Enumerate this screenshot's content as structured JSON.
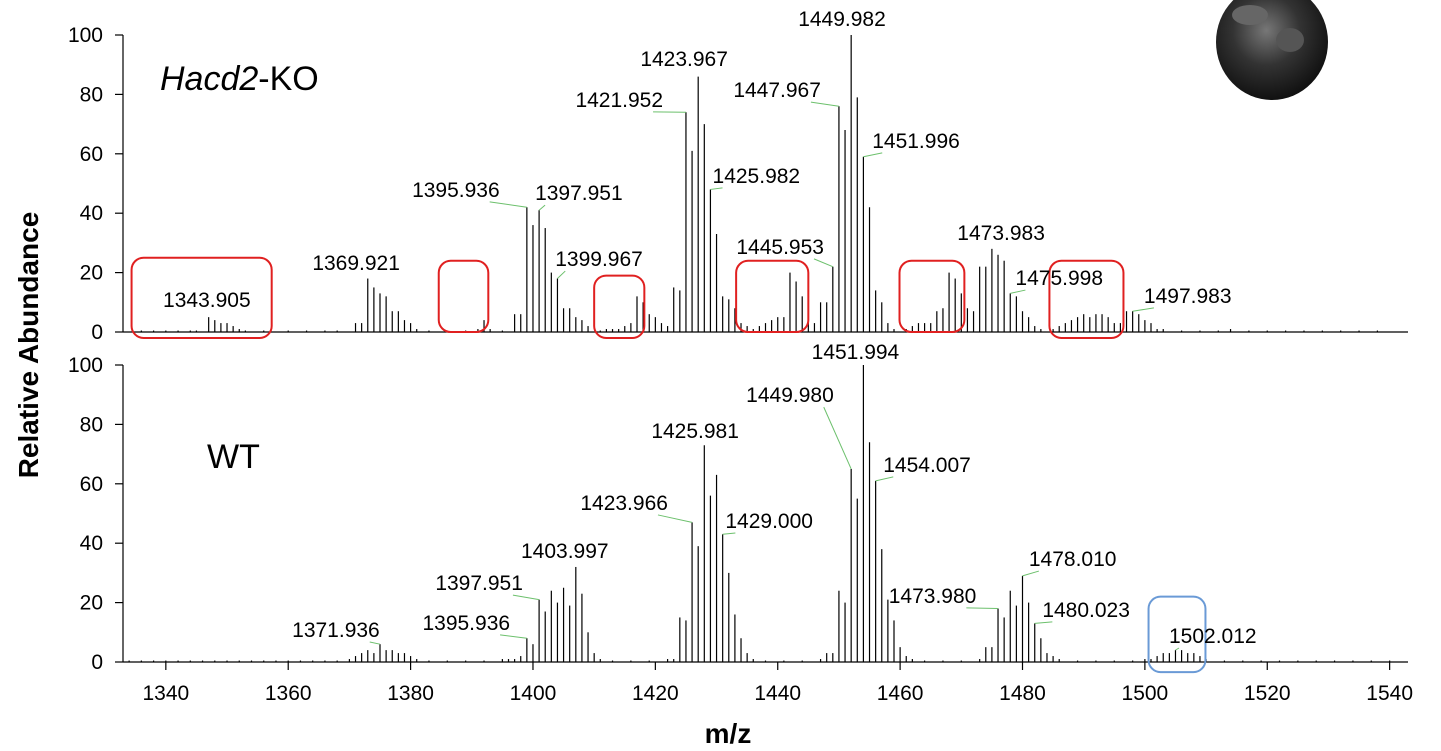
{
  "chart_data": [
    {
      "type": "stick",
      "ylabel": "Relative Abundance",
      "panel_label": {
        "italic": "Hacd2",
        "plain": "-KO"
      },
      "xlim": [
        1333,
        1543
      ],
      "ylim": [
        0,
        100
      ],
      "yticks": [
        0,
        20,
        40,
        60,
        80,
        100
      ],
      "color": "#000000",
      "x": [
        1336,
        1338,
        1340,
        1342,
        1344,
        1345,
        1347,
        1348,
        1349,
        1350,
        1351,
        1352,
        1353,
        1356,
        1360,
        1363,
        1366,
        1368,
        1371,
        1372,
        1373,
        1374,
        1375,
        1376,
        1377,
        1378,
        1379,
        1380,
        1381,
        1383,
        1386,
        1389,
        1391,
        1392,
        1393,
        1395,
        1397,
        1398,
        1399,
        1400,
        1401,
        1402,
        1403,
        1404,
        1405,
        1406,
        1407,
        1408,
        1409,
        1411,
        1412,
        1413,
        1414,
        1415,
        1416,
        1417,
        1418,
        1419,
        1420,
        1421,
        1422,
        1423,
        1424,
        1425,
        1426,
        1427,
        1428,
        1429,
        1430,
        1431,
        1432,
        1433,
        1434,
        1435,
        1436,
        1437,
        1438,
        1439,
        1440,
        1441,
        1442,
        1443,
        1444,
        1445,
        1446,
        1447,
        1448,
        1449,
        1450,
        1451,
        1452,
        1453,
        1454,
        1455,
        1456,
        1457,
        1458,
        1459,
        1461,
        1462,
        1463,
        1464,
        1465,
        1466,
        1467,
        1468,
        1469,
        1470,
        1471,
        1472,
        1473,
        1474,
        1475,
        1476,
        1477,
        1478,
        1479,
        1480,
        1481,
        1482,
        1483,
        1485,
        1486,
        1487,
        1488,
        1489,
        1490,
        1491,
        1492,
        1493,
        1494,
        1495,
        1496,
        1497,
        1498,
        1499,
        1500,
        1501,
        1502,
        1503,
        1506,
        1509,
        1512,
        1514,
        1517,
        1520,
        1523,
        1526,
        1529,
        1532,
        1535,
        1538
      ],
      "values": [
        0.5,
        0.5,
        0.5,
        0.5,
        0.5,
        0.5,
        5,
        4,
        3,
        3,
        2,
        1,
        0.5,
        0.5,
        0.5,
        0.5,
        0.5,
        0.5,
        3,
        3,
        18,
        15,
        13,
        12,
        7,
        7,
        4,
        3,
        1,
        0.5,
        0.5,
        0.5,
        1,
        4,
        1,
        0.5,
        6,
        6,
        42,
        36,
        41,
        35,
        20,
        18,
        8,
        8,
        5,
        4,
        2,
        0.5,
        1,
        1,
        1,
        2,
        3,
        12,
        10,
        6,
        5,
        3,
        2,
        15,
        14,
        74,
        61,
        86,
        70,
        48,
        33,
        12,
        11,
        8,
        3,
        2,
        1,
        2,
        3,
        4,
        5,
        5,
        20,
        17,
        12,
        5,
        3,
        10,
        10,
        22,
        76,
        68,
        100,
        79,
        59,
        42,
        14,
        10,
        3,
        1,
        1,
        2,
        3,
        3,
        3,
        7,
        8,
        20,
        18,
        13,
        8,
        7,
        22,
        22,
        28,
        26,
        24,
        13,
        12,
        7,
        5,
        2,
        1,
        1,
        2,
        3,
        4,
        5,
        6,
        5,
        6,
        6,
        5,
        3,
        3,
        7,
        7,
        6,
        4,
        3,
        1,
        1,
        0.5,
        0.5,
        0.5,
        1,
        0.5,
        0.5,
        0.5,
        0.5,
        0.5,
        0.5,
        0.5,
        0.5
      ],
      "annotations": [
        {
          "text": "1343.905",
          "x": 1346.7,
          "y": 8.4
        },
        {
          "text": "1369.921",
          "x": 1371.1,
          "y": 20.9
        },
        {
          "text": "1395.936",
          "x": 1387.4,
          "y": 45.5,
          "arrow": [
            1399,
            42
          ]
        },
        {
          "text": "1397.951",
          "x": 1407.5,
          "y": 44.4,
          "arrow": [
            1401,
            41
          ]
        },
        {
          "text": "1399.967",
          "x": 1410.8,
          "y": 22.2,
          "arrow": [
            1404,
            18
          ]
        },
        {
          "text": "1421.952",
          "x": 1414.1,
          "y": 75.8,
          "arrow": [
            1425,
            74
          ]
        },
        {
          "text": "1423.967",
          "x": 1424.7,
          "y": 89.6
        },
        {
          "text": "1425.982",
          "x": 1436.5,
          "y": 50.2,
          "arrow": [
            1429,
            48
          ]
        },
        {
          "text": "1445.953",
          "x": 1440.4,
          "y": 26.3,
          "arrow": [
            1449,
            22
          ]
        },
        {
          "text": "1447.967",
          "x": 1439.9,
          "y": 79.1,
          "arrow": [
            1450,
            76
          ]
        },
        {
          "text": "1449.982",
          "x": 1450.5,
          "y": 103
        },
        {
          "text": "1451.996",
          "x": 1462.6,
          "y": 62,
          "arrow": [
            1454,
            59
          ]
        },
        {
          "text": "1473.983",
          "x": 1476.5,
          "y": 31
        },
        {
          "text": "1475.998",
          "x": 1486.0,
          "y": 15.8,
          "arrow": [
            1478,
            13
          ]
        },
        {
          "text": "1497.983",
          "x": 1507.0,
          "y": 9.8,
          "arrow": [
            1498,
            7
          ]
        }
      ],
      "highlights": [
        {
          "xrange": [
            1334.4,
            1357.3
          ],
          "yrange": [
            -2,
            25
          ],
          "color": "#e02020"
        },
        {
          "xrange": [
            1384.6,
            1392.7
          ],
          "yrange": [
            0,
            24
          ],
          "color": "#e02020"
        },
        {
          "xrange": [
            1410.0,
            1418.2
          ],
          "yrange": [
            -2,
            19
          ],
          "color": "#e02020"
        },
        {
          "xrange": [
            1433.2,
            1445.0
          ],
          "yrange": [
            0,
            24
          ],
          "color": "#e02020"
        },
        {
          "xrange": [
            1459.9,
            1470.5
          ],
          "yrange": [
            0,
            24
          ],
          "color": "#e02020"
        },
        {
          "xrange": [
            1484.4,
            1496.5
          ],
          "yrange": [
            -2,
            24
          ],
          "color": "#e02020"
        }
      ]
    },
    {
      "type": "stick",
      "xlabel": "m/z",
      "panel_label": {
        "plain": "WT"
      },
      "xlim": [
        1333,
        1543
      ],
      "ylim": [
        0,
        100
      ],
      "yticks": [
        0,
        20,
        40,
        60,
        80,
        100
      ],
      "xticks": [
        1340,
        1360,
        1380,
        1400,
        1420,
        1440,
        1460,
        1480,
        1500,
        1520,
        1540
      ],
      "color": "#000000",
      "x": [
        1334,
        1336,
        1338,
        1340,
        1342,
        1344,
        1346,
        1348,
        1350,
        1352,
        1354,
        1356,
        1358,
        1360,
        1362,
        1364,
        1366,
        1368,
        1370,
        1371,
        1372,
        1373,
        1374,
        1375,
        1376,
        1377,
        1378,
        1379,
        1380,
        1381,
        1383,
        1386,
        1389,
        1392,
        1395,
        1396,
        1397,
        1398,
        1399,
        1400,
        1401,
        1402,
        1403,
        1404,
        1405,
        1406,
        1407,
        1408,
        1409,
        1410,
        1411,
        1413,
        1416,
        1419,
        1422,
        1423,
        1424,
        1425,
        1426,
        1427,
        1428,
        1429,
        1430,
        1431,
        1432,
        1433,
        1434,
        1435,
        1436,
        1438,
        1441,
        1444,
        1447,
        1448,
        1449,
        1450,
        1451,
        1452,
        1453,
        1454,
        1455,
        1456,
        1457,
        1458,
        1459,
        1460,
        1461,
        1462,
        1464,
        1467,
        1470,
        1473,
        1474,
        1475,
        1476,
        1477,
        1478,
        1479,
        1480,
        1481,
        1482,
        1483,
        1484,
        1485,
        1486,
        1489,
        1492,
        1495,
        1498,
        1500,
        1501,
        1502,
        1503,
        1504,
        1505,
        1506,
        1507,
        1508,
        1509,
        1510,
        1513,
        1516,
        1519,
        1522,
        1525,
        1528,
        1531,
        1534,
        1537,
        1540
      ],
      "values": [
        0.5,
        0.5,
        0.5,
        0.5,
        0.5,
        0.5,
        0.5,
        0.5,
        0.5,
        0.5,
        0.5,
        0.5,
        0.5,
        0.5,
        0.5,
        0.5,
        0.5,
        0.5,
        1,
        2,
        3,
        4,
        3,
        6,
        4,
        4,
        3,
        3,
        2,
        1,
        0.5,
        0.5,
        0.5,
        0.5,
        1,
        1,
        1,
        2,
        8,
        6,
        21,
        17,
        24,
        20,
        25,
        19,
        32,
        23,
        10,
        3,
        1,
        0.5,
        0.5,
        0.5,
        1,
        1,
        15,
        14,
        47,
        39,
        73,
        56,
        63,
        43,
        30,
        16,
        8,
        3,
        1,
        0.5,
        0.5,
        0.5,
        1,
        3,
        3,
        24,
        20,
        65,
        55,
        100,
        74,
        61,
        38,
        21,
        14,
        5,
        2,
        1,
        0.5,
        0.5,
        0.5,
        1,
        5,
        5,
        18,
        15,
        24,
        19,
        29,
        20,
        13,
        8,
        3,
        2,
        1,
        0.5,
        0.5,
        0.5,
        0.5,
        1,
        1,
        2,
        3,
        3,
        4,
        4,
        3,
        3,
        2,
        1,
        0.5,
        0.5,
        0.5,
        0.5,
        0.5,
        0.5,
        0.5,
        0.5,
        0.5,
        0.5
      ],
      "annotations": [
        {
          "text": "1371.936",
          "x": 1367.8,
          "y": 8.4,
          "arrow": [
            1375,
            6
          ]
        },
        {
          "text": "1395.936",
          "x": 1389.1,
          "y": 10.8,
          "arrow": [
            1399,
            8
          ]
        },
        {
          "text": "1397.951",
          "x": 1391.2,
          "y": 24.2,
          "arrow": [
            1401,
            21
          ]
        },
        {
          "text": "1403.997",
          "x": 1405.2,
          "y": 35
        },
        {
          "text": "1423.966",
          "x": 1414.9,
          "y": 51.2,
          "arrow": [
            1426,
            47
          ]
        },
        {
          "text": "1425.981",
          "x": 1426.5,
          "y": 75.4
        },
        {
          "text": "1429.000",
          "x": 1438.6,
          "y": 45.1,
          "arrow": [
            1431,
            43
          ]
        },
        {
          "text": "1449.980",
          "x": 1442.0,
          "y": 87.5,
          "arrow": [
            1452,
            65
          ]
        },
        {
          "text": "1451.994",
          "x": 1452.7,
          "y": 102
        },
        {
          "text": "1454.007",
          "x": 1464.4,
          "y": 64,
          "arrow": [
            1456,
            61
          ]
        },
        {
          "text": "1473.980",
          "x": 1465.3,
          "y": 19.9,
          "arrow": [
            1476,
            18
          ]
        },
        {
          "text": "1478.010",
          "x": 1488.2,
          "y": 32.3,
          "arrow": [
            1480,
            29
          ]
        },
        {
          "text": "1480.023",
          "x": 1490.4,
          "y": 15.2,
          "arrow": [
            1482,
            13
          ]
        },
        {
          "text": "1502.012",
          "x": 1511.1,
          "y": 6.4,
          "arrow": [
            1505,
            4
          ]
        }
      ],
      "highlights": [
        {
          "xrange": [
            1500.6,
            1509.9
          ],
          "yrange": [
            -3.4,
            22
          ],
          "color": "#6a9ad6"
        }
      ]
    }
  ]
}
